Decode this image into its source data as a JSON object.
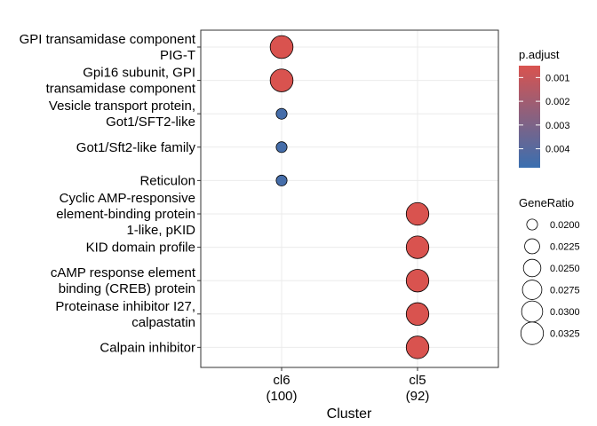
{
  "chart_data": {
    "type": "scatter",
    "xlabel": "Cluster",
    "ylabel": "",
    "x_categories": [
      {
        "lines": [
          "cl6",
          "(100)"
        ]
      },
      {
        "lines": [
          "cl5",
          "(92)"
        ]
      }
    ],
    "y_categories": [
      {
        "lines": [
          "GPI transamidase component",
          "PIG-T"
        ]
      },
      {
        "lines": [
          "Gpi16 subunit, GPI",
          "transamidase component"
        ]
      },
      {
        "lines": [
          "Vesicle transport protein,",
          "Got1/SFT2-like"
        ]
      },
      {
        "lines": [
          "Got1/Sft2-like family"
        ]
      },
      {
        "lines": [
          "Reticulon"
        ]
      },
      {
        "lines": [
          "Cyclic AMP-responsive",
          "element-binding protein",
          "1-like, pKID"
        ]
      },
      {
        "lines": [
          "KID domain profile"
        ]
      },
      {
        "lines": [
          "cAMP response element",
          "binding (CREB) protein"
        ]
      },
      {
        "lines": [
          "Proteinase inhibitor I27,",
          "calpastatin"
        ]
      },
      {
        "lines": [
          "Calpain inhibitor"
        ]
      }
    ],
    "points": [
      {
        "x": 0,
        "y": 0,
        "gene_ratio": 0.033,
        "p_adjust": 0.0005
      },
      {
        "x": 0,
        "y": 1,
        "gene_ratio": 0.033,
        "p_adjust": 0.0005
      },
      {
        "x": 0,
        "y": 2,
        "gene_ratio": 0.02,
        "p_adjust": 0.0045
      },
      {
        "x": 0,
        "y": 3,
        "gene_ratio": 0.02,
        "p_adjust": 0.0045
      },
      {
        "x": 0,
        "y": 4,
        "gene_ratio": 0.02,
        "p_adjust": 0.0045
      },
      {
        "x": 1,
        "y": 5,
        "gene_ratio": 0.0326,
        "p_adjust": 0.0005
      },
      {
        "x": 1,
        "y": 6,
        "gene_ratio": 0.0326,
        "p_adjust": 0.0005
      },
      {
        "x": 1,
        "y": 7,
        "gene_ratio": 0.0326,
        "p_adjust": 0.0005
      },
      {
        "x": 1,
        "y": 8,
        "gene_ratio": 0.0326,
        "p_adjust": 0.0005
      },
      {
        "x": 1,
        "y": 9,
        "gene_ratio": 0.0326,
        "p_adjust": 0.0005
      }
    ],
    "color_legend": {
      "title": "p.adjust",
      "ticks": [
        "0.001",
        "0.002",
        "0.003",
        "0.004"
      ],
      "tick_values": [
        0.001,
        0.002,
        0.003,
        0.004
      ],
      "range": [
        0.0005,
        0.0048
      ],
      "low_color": "#d9534f",
      "high_color": "#3a6fb0",
      "reverse": true
    },
    "size_legend": {
      "title": "GeneRatio",
      "entries": [
        "0.0200",
        "0.0225",
        "0.0250",
        "0.0275",
        "0.0300",
        "0.0325"
      ],
      "values": [
        0.02,
        0.0225,
        0.025,
        0.0275,
        0.03,
        0.0325
      ]
    },
    "grid": true,
    "legend_placement": "right"
  }
}
